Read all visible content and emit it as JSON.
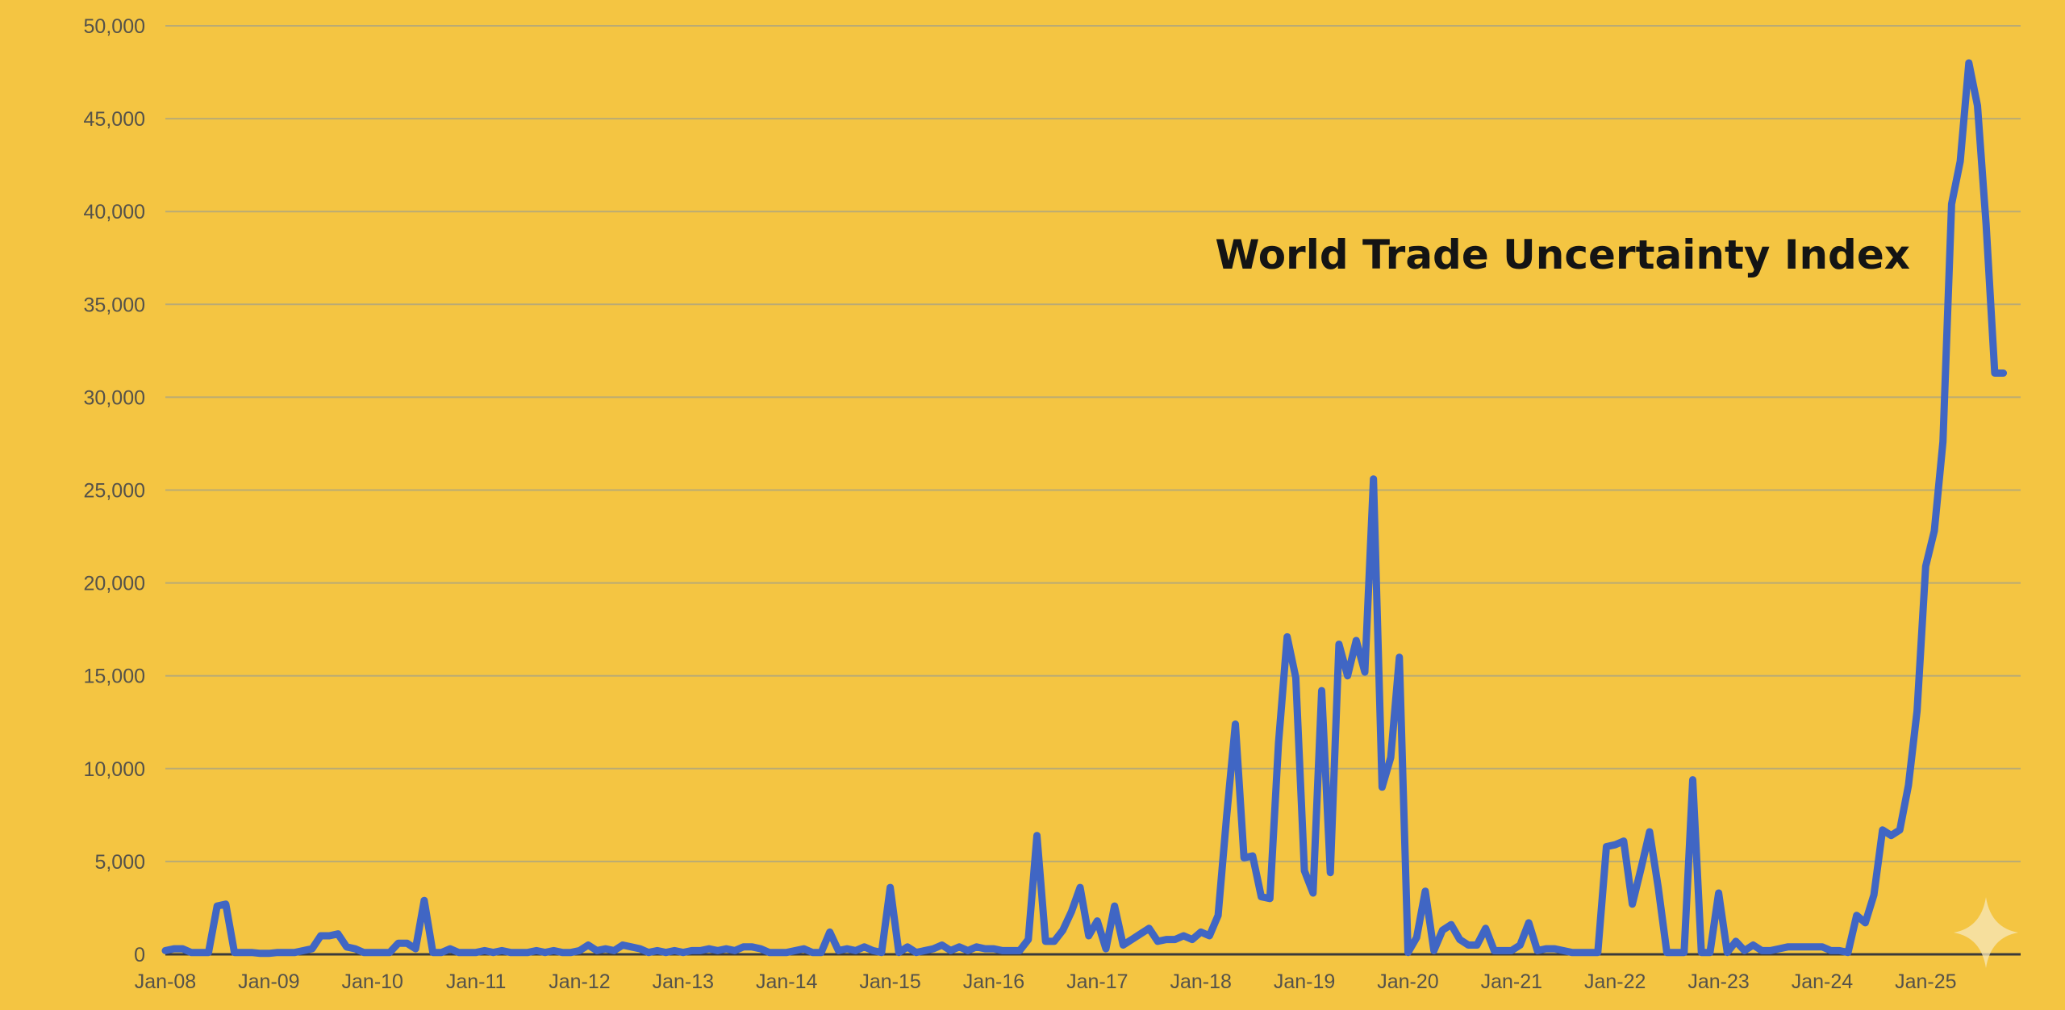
{
  "colors": {
    "background": "#f4c542",
    "series": "#4066c4",
    "grid": "#b9ab74",
    "text": "#55524a",
    "title": "#141414"
  },
  "chart_data": {
    "type": "line",
    "title": "World Trade Uncertainty Index",
    "xlabel": "",
    "ylabel": "",
    "grid": true,
    "legend": "none",
    "x_range": [
      "2008-01",
      "2025-12"
    ],
    "ylim": [
      0,
      50000
    ],
    "yticks": [
      "0",
      "5,000",
      "10,000",
      "15,000",
      "20,000",
      "25,000",
      "30,000",
      "35,000",
      "40,000",
      "45,000",
      "50,000"
    ],
    "xticks": [
      "Jan-08",
      "Jan-09",
      "Jan-10",
      "Jan-11",
      "Jan-12",
      "Jan-13",
      "Jan-14",
      "Jan-15",
      "Jan-16",
      "Jan-17",
      "Jan-18",
      "Jan-19",
      "Jan-20",
      "Jan-21",
      "Jan-22",
      "Jan-23",
      "Jan-24",
      "Jan-25"
    ],
    "series": [
      {
        "points": [
          [
            "2008-01",
            200
          ],
          [
            "2008-02",
            300
          ],
          [
            "2008-03",
            300
          ],
          [
            "2008-04",
            100
          ],
          [
            "2008-05",
            100
          ],
          [
            "2008-06",
            100
          ],
          [
            "2008-07",
            2600
          ],
          [
            "2008-08",
            2700
          ],
          [
            "2008-09",
            100
          ],
          [
            "2008-10",
            100
          ],
          [
            "2008-11",
            100
          ],
          [
            "2008-12",
            50
          ],
          [
            "2009-01",
            50
          ],
          [
            "2009-02",
            100
          ],
          [
            "2009-03",
            100
          ],
          [
            "2009-04",
            100
          ],
          [
            "2009-05",
            200
          ],
          [
            "2009-06",
            300
          ],
          [
            "2009-07",
            1000
          ],
          [
            "2009-08",
            1000
          ],
          [
            "2009-09",
            1100
          ],
          [
            "2009-10",
            400
          ],
          [
            "2009-11",
            300
          ],
          [
            "2009-12",
            100
          ],
          [
            "2010-01",
            100
          ],
          [
            "2010-02",
            100
          ],
          [
            "2010-03",
            100
          ],
          [
            "2010-04",
            600
          ],
          [
            "2010-05",
            600
          ],
          [
            "2010-06",
            300
          ],
          [
            "2010-07",
            2900
          ],
          [
            "2010-08",
            100
          ],
          [
            "2010-09",
            100
          ],
          [
            "2010-10",
            300
          ],
          [
            "2010-11",
            100
          ],
          [
            "2010-12",
            100
          ],
          [
            "2011-01",
            100
          ],
          [
            "2011-02",
            200
          ],
          [
            "2011-03",
            100
          ],
          [
            "2011-04",
            200
          ],
          [
            "2011-05",
            100
          ],
          [
            "2011-06",
            100
          ],
          [
            "2011-07",
            100
          ],
          [
            "2011-08",
            200
          ],
          [
            "2011-09",
            100
          ],
          [
            "2011-10",
            200
          ],
          [
            "2011-11",
            100
          ],
          [
            "2011-12",
            100
          ],
          [
            "2012-01",
            200
          ],
          [
            "2012-02",
            500
          ],
          [
            "2012-03",
            200
          ],
          [
            "2012-04",
            300
          ],
          [
            "2012-05",
            200
          ],
          [
            "2012-06",
            500
          ],
          [
            "2012-07",
            400
          ],
          [
            "2012-08",
            300
          ],
          [
            "2012-09",
            100
          ],
          [
            "2012-10",
            200
          ],
          [
            "2012-11",
            100
          ],
          [
            "2012-12",
            200
          ],
          [
            "2013-01",
            100
          ],
          [
            "2013-02",
            200
          ],
          [
            "2013-03",
            200
          ],
          [
            "2013-04",
            300
          ],
          [
            "2013-05",
            200
          ],
          [
            "2013-06",
            300
          ],
          [
            "2013-07",
            200
          ],
          [
            "2013-08",
            400
          ],
          [
            "2013-09",
            400
          ],
          [
            "2013-10",
            300
          ],
          [
            "2013-11",
            100
          ],
          [
            "2013-12",
            100
          ],
          [
            "2014-01",
            100
          ],
          [
            "2014-02",
            200
          ],
          [
            "2014-03",
            300
          ],
          [
            "2014-04",
            100
          ],
          [
            "2014-05",
            100
          ],
          [
            "2014-06",
            1200
          ],
          [
            "2014-07",
            200
          ],
          [
            "2014-08",
            300
          ],
          [
            "2014-09",
            200
          ],
          [
            "2014-10",
            400
          ],
          [
            "2014-11",
            200
          ],
          [
            "2014-12",
            100
          ],
          [
            "2015-01",
            3600
          ],
          [
            "2015-02",
            100
          ],
          [
            "2015-03",
            400
          ],
          [
            "2015-04",
            100
          ],
          [
            "2015-05",
            200
          ],
          [
            "2015-06",
            300
          ],
          [
            "2015-07",
            500
          ],
          [
            "2015-08",
            200
          ],
          [
            "2015-09",
            400
          ],
          [
            "2015-10",
            200
          ],
          [
            "2015-11",
            400
          ],
          [
            "2015-12",
            300
          ],
          [
            "2016-01",
            300
          ],
          [
            "2016-02",
            200
          ],
          [
            "2016-03",
            200
          ],
          [
            "2016-04",
            200
          ],
          [
            "2016-05",
            800
          ],
          [
            "2016-06",
            6400
          ],
          [
            "2016-07",
            700
          ],
          [
            "2016-08",
            700
          ],
          [
            "2016-09",
            1300
          ],
          [
            "2016-10",
            2300
          ],
          [
            "2016-11",
            3600
          ],
          [
            "2016-12",
            1000
          ],
          [
            "2017-01",
            1800
          ],
          [
            "2017-02",
            300
          ],
          [
            "2017-03",
            2600
          ],
          [
            "2017-04",
            500
          ],
          [
            "2017-05",
            800
          ],
          [
            "2017-06",
            1100
          ],
          [
            "2017-07",
            1400
          ],
          [
            "2017-08",
            700
          ],
          [
            "2017-09",
            800
          ],
          [
            "2017-10",
            800
          ],
          [
            "2017-11",
            1000
          ],
          [
            "2017-12",
            800
          ],
          [
            "2018-01",
            1200
          ],
          [
            "2018-02",
            1000
          ],
          [
            "2018-03",
            2100
          ],
          [
            "2018-04",
            7500
          ],
          [
            "2018-05",
            12400
          ],
          [
            "2018-06",
            5200
          ],
          [
            "2018-07",
            5300
          ],
          [
            "2018-08",
            3100
          ],
          [
            "2018-09",
            3000
          ],
          [
            "2018-10",
            11400
          ],
          [
            "2018-11",
            17100
          ],
          [
            "2018-12",
            14900
          ],
          [
            "2019-01",
            4500
          ],
          [
            "2019-02",
            3300
          ],
          [
            "2019-03",
            14200
          ],
          [
            "2019-04",
            4400
          ],
          [
            "2019-05",
            16700
          ],
          [
            "2019-06",
            15000
          ],
          [
            "2019-07",
            16900
          ],
          [
            "2019-08",
            15200
          ],
          [
            "2019-09",
            25600
          ],
          [
            "2019-10",
            9000
          ],
          [
            "2019-11",
            10600
          ],
          [
            "2019-12",
            16000
          ],
          [
            "2020-01",
            100
          ],
          [
            "2020-02",
            900
          ],
          [
            "2020-03",
            3400
          ],
          [
            "2020-04",
            200
          ],
          [
            "2020-05",
            1300
          ],
          [
            "2020-06",
            1600
          ],
          [
            "2020-07",
            800
          ],
          [
            "2020-08",
            500
          ],
          [
            "2020-09",
            500
          ],
          [
            "2020-10",
            1400
          ],
          [
            "2020-11",
            200
          ],
          [
            "2020-12",
            200
          ],
          [
            "2021-01",
            200
          ],
          [
            "2021-02",
            500
          ],
          [
            "2021-03",
            1700
          ],
          [
            "2021-04",
            200
          ],
          [
            "2021-05",
            300
          ],
          [
            "2021-06",
            300
          ],
          [
            "2021-07",
            200
          ],
          [
            "2021-08",
            100
          ],
          [
            "2021-09",
            100
          ],
          [
            "2021-10",
            100
          ],
          [
            "2021-11",
            100
          ],
          [
            "2021-12",
            5800
          ],
          [
            "2022-01",
            5900
          ],
          [
            "2022-02",
            6100
          ],
          [
            "2022-03",
            2700
          ],
          [
            "2022-04",
            4600
          ],
          [
            "2022-05",
            6600
          ],
          [
            "2022-06",
            3600
          ],
          [
            "2022-07",
            100
          ],
          [
            "2022-08",
            100
          ],
          [
            "2022-09",
            100
          ],
          [
            "2022-10",
            9400
          ],
          [
            "2022-11",
            100
          ],
          [
            "2022-12",
            100
          ],
          [
            "2023-01",
            3300
          ],
          [
            "2023-02",
            100
          ],
          [
            "2023-03",
            700
          ],
          [
            "2023-04",
            200
          ],
          [
            "2023-05",
            500
          ],
          [
            "2023-06",
            200
          ],
          [
            "2023-07",
            200
          ],
          [
            "2023-08",
            300
          ],
          [
            "2023-09",
            400
          ],
          [
            "2023-10",
            400
          ],
          [
            "2023-11",
            400
          ],
          [
            "2023-12",
            400
          ],
          [
            "2024-01",
            400
          ],
          [
            "2024-02",
            200
          ],
          [
            "2024-03",
            200
          ],
          [
            "2024-04",
            100
          ],
          [
            "2024-05",
            2100
          ],
          [
            "2024-06",
            1700
          ],
          [
            "2024-07",
            3200
          ],
          [
            "2024-08",
            6700
          ],
          [
            "2024-09",
            6400
          ],
          [
            "2024-10",
            6700
          ],
          [
            "2024-11",
            9100
          ],
          [
            "2024-12",
            13100
          ],
          [
            "2025-01",
            20900
          ],
          [
            "2025-02",
            22800
          ],
          [
            "2025-03",
            27600
          ],
          [
            "2025-04",
            40400
          ],
          [
            "2025-05",
            42700
          ],
          [
            "2025-06",
            48000
          ],
          [
            "2025-07",
            45700
          ],
          [
            "2025-08",
            39300
          ],
          [
            "2025-09",
            31300
          ],
          [
            "2025-10",
            31300
          ]
        ]
      }
    ]
  }
}
